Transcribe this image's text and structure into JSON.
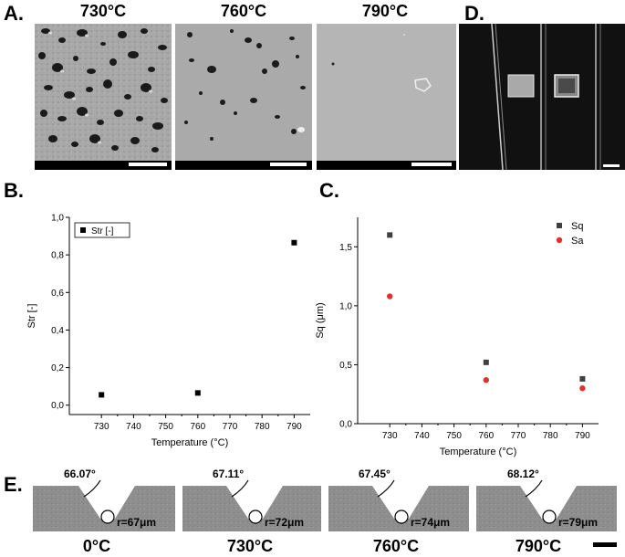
{
  "panel_labels": {
    "A": "A.",
    "B": "B.",
    "C": "C.",
    "D": "D.",
    "E": "E."
  },
  "panelA": {
    "titles": [
      "730°C",
      "760°C",
      "790°C"
    ]
  },
  "panelE": {
    "angles": [
      "66.07°",
      "67.11°",
      "67.45°",
      "68.12°"
    ],
    "radii": [
      "r=67μm",
      "r=72μm",
      "r=74μm",
      "r=79μm"
    ],
    "temps": [
      "0°C",
      "730°C",
      "760°C",
      "790°C"
    ]
  },
  "chart_data": [
    {
      "type": "scatter",
      "panel": "B",
      "xlabel": "Temperature (°C)",
      "ylabel": "Str [-]",
      "xlim": [
        720,
        795
      ],
      "ylim": [
        -0.05,
        1.0
      ],
      "xticks": [
        "730",
        "740",
        "750",
        "760",
        "770",
        "780",
        "790"
      ],
      "xtick_values": [
        730,
        740,
        750,
        760,
        770,
        780,
        790
      ],
      "yticks": [
        "0,0",
        "0,2",
        "0,4",
        "0,6",
        "0,8",
        "1,0"
      ],
      "ytick_values": [
        0,
        0.2,
        0.4,
        0.6,
        0.8,
        1.0
      ],
      "legend_position": "top-left",
      "series": [
        {
          "name": "Str [-]",
          "color": "#000000",
          "marker": "square",
          "x": [
            730,
            760,
            790
          ],
          "y": [
            0.055,
            0.065,
            0.865
          ]
        }
      ]
    },
    {
      "type": "scatter",
      "panel": "C",
      "xlabel": "Temperature (°C)",
      "ylabel": "Sq (μm)",
      "xlim": [
        720,
        795
      ],
      "ylim": [
        0.0,
        1.75
      ],
      "xticks": [
        "730",
        "740",
        "750",
        "760",
        "770",
        "780",
        "790"
      ],
      "xtick_values": [
        730,
        740,
        750,
        760,
        770,
        780,
        790
      ],
      "yticks": [
        "0,0",
        "0,5",
        "1,0",
        "1,5"
      ],
      "ytick_values": [
        0,
        0.5,
        1.0,
        1.5
      ],
      "legend_position": "top-right",
      "series": [
        {
          "name": "Sq",
          "color": "#404040",
          "marker": "square",
          "x": [
            730,
            760,
            790
          ],
          "y": [
            1.6,
            0.52,
            0.38
          ]
        },
        {
          "name": "Sa",
          "color": "#e03030",
          "marker": "circle",
          "x": [
            730,
            760,
            790
          ],
          "y": [
            1.08,
            0.37,
            0.3
          ]
        }
      ]
    }
  ]
}
